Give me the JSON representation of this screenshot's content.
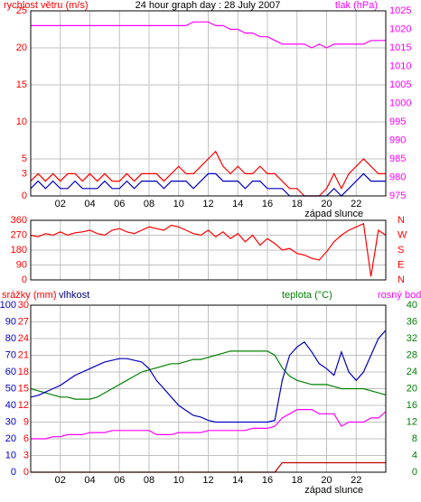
{
  "chart_data": [
    {
      "type": "line",
      "title": "24 hour graph day : 28 July 2007",
      "ylabel": "rychlost větru (m/s)",
      "y2label": "tlak (hPa)",
      "xlim": [
        0,
        24
      ],
      "xticks": [
        {
          "value": 2,
          "label": "02"
        },
        {
          "value": 4,
          "label": "04"
        },
        {
          "value": 6,
          "label": "06"
        },
        {
          "value": 8,
          "label": "08"
        },
        {
          "value": 10,
          "label": "10"
        },
        {
          "value": 12,
          "label": "12"
        },
        {
          "value": 14,
          "label": "14"
        },
        {
          "value": 16,
          "label": "16"
        },
        {
          "value": 18,
          "label": "18"
        },
        {
          "value": 20,
          "label": "20"
        },
        {
          "value": 22,
          "label": "22"
        }
      ],
      "ylim": [
        0,
        25
      ],
      "yticks": [
        0,
        3,
        5,
        10,
        15,
        20,
        25
      ],
      "ycolor": "#ff0000",
      "y2lim": [
        975,
        1025
      ],
      "y2ticks": [
        975,
        980,
        985,
        990,
        995,
        1000,
        1005,
        1010,
        1015,
        1020,
        1025
      ],
      "y2color": "#ff00ff",
      "grid": true,
      "annotations": [
        {
          "text": "západ slunce",
          "x": 20.5
        }
      ],
      "x": [
        0,
        0.5,
        1,
        1.5,
        2,
        2.5,
        3,
        3.5,
        4,
        4.5,
        5,
        5.5,
        6,
        6.5,
        7,
        7.5,
        8,
        8.5,
        9,
        9.5,
        10,
        10.5,
        11,
        11.5,
        12,
        12.5,
        13,
        13.5,
        14,
        14.5,
        15,
        15.5,
        16,
        16.5,
        17,
        17.5,
        18,
        18.5,
        19,
        19.5,
        20,
        20.5,
        21,
        21.5,
        22,
        22.5,
        23,
        23.5,
        24
      ],
      "series": [
        {
          "color": "#ff00ff",
          "axis": "y2",
          "values": [
            1021,
            1021,
            1021,
            1021,
            1021,
            1021,
            1021,
            1021,
            1021,
            1021,
            1021,
            1021,
            1021,
            1021,
            1021,
            1021,
            1021,
            1021,
            1021,
            1021,
            1021,
            1021,
            1022,
            1022,
            1022,
            1021,
            1021,
            1020,
            1020,
            1019,
            1019,
            1018,
            1018,
            1017,
            1016,
            1016,
            1016,
            1016,
            1015,
            1016,
            1015,
            1016,
            1016,
            1016,
            1016,
            1016,
            1017,
            1017,
            1017
          ]
        },
        {
          "color": "#ff0000",
          "values": [
            2,
            3,
            2,
            3,
            2,
            3,
            3,
            2,
            3,
            2,
            3,
            2,
            2,
            3,
            2,
            3,
            3,
            3,
            2,
            3,
            4,
            3,
            3,
            4,
            5,
            6,
            4,
            3,
            4,
            3,
            3,
            4,
            3,
            3,
            2,
            1,
            1,
            0,
            0,
            0,
            1,
            3,
            1,
            3,
            4,
            5,
            4,
            3,
            3
          ]
        },
        {
          "color": "#0000c0",
          "values": [
            1,
            2,
            1,
            2,
            1,
            1,
            2,
            1,
            1,
            1,
            2,
            1,
            1,
            2,
            1,
            2,
            2,
            2,
            1,
            2,
            2,
            2,
            1,
            2,
            3,
            3,
            2,
            2,
            2,
            1,
            2,
            2,
            1,
            1,
            1,
            0,
            0,
            0,
            0,
            0,
            0,
            1,
            0,
            1,
            2,
            3,
            2,
            2,
            2
          ]
        }
      ]
    },
    {
      "type": "line",
      "xlim": [
        0,
        24
      ],
      "xticks": [
        2,
        4,
        6,
        8,
        10,
        12,
        14,
        16,
        18,
        20,
        22
      ],
      "xtick_labels": false,
      "ylim": [
        0,
        360
      ],
      "yticks": [
        0,
        90,
        180,
        270,
        360
      ],
      "ycolor": "#ff0000",
      "y2lim": [
        0,
        360
      ],
      "y2ticks": [
        {
          "value": 0,
          "label": "N"
        },
        {
          "value": 90,
          "label": "E"
        },
        {
          "value": 180,
          "label": "S"
        },
        {
          "value": 270,
          "label": "W"
        },
        {
          "value": 360,
          "label": "N"
        }
      ],
      "y2color": "#ff0000",
      "grid": true,
      "x": [
        0,
        0.5,
        1,
        1.5,
        2,
        2.5,
        3,
        3.5,
        4,
        4.5,
        5,
        5.5,
        6,
        6.5,
        7,
        7.5,
        8,
        8.5,
        9,
        9.5,
        10,
        10.5,
        11,
        11.5,
        12,
        12.5,
        13,
        13.5,
        14,
        14.5,
        15,
        15.5,
        16,
        16.5,
        17,
        17.5,
        18,
        18.5,
        19,
        19.5,
        20,
        20.5,
        21,
        21.5,
        22,
        22.5,
        23,
        23.5,
        24
      ],
      "series": [
        {
          "color": "#ff0000",
          "values": [
            270,
            260,
            280,
            270,
            290,
            270,
            285,
            290,
            300,
            280,
            270,
            300,
            310,
            290,
            280,
            300,
            320,
            310,
            300,
            330,
            320,
            300,
            280,
            270,
            300,
            260,
            290,
            250,
            280,
            230,
            270,
            210,
            250,
            220,
            180,
            190,
            160,
            150,
            130,
            120,
            170,
            230,
            270,
            300,
            320,
            340,
            20,
            300,
            270
          ]
        }
      ]
    },
    {
      "type": "line",
      "ylabel": "srážky (mm)",
      "y2label": "vlhkost",
      "y3label": "teplota (°C)",
      "xlim": [
        0,
        24
      ],
      "xticks": [
        {
          "value": 2,
          "label": "02"
        },
        {
          "value": 4,
          "label": "04"
        },
        {
          "value": 6,
          "label": "06"
        },
        {
          "value": 8,
          "label": "08"
        },
        {
          "value": 10,
          "label": "10"
        },
        {
          "value": 12,
          "label": "12"
        },
        {
          "value": 14,
          "label": "14"
        },
        {
          "value": 16,
          "label": "16"
        },
        {
          "value": 18,
          "label": "18"
        },
        {
          "value": 20,
          "label": "20"
        },
        {
          "value": 22,
          "label": "22"
        }
      ],
      "ylim": [
        0,
        30
      ],
      "yticks": [
        0,
        3,
        6,
        9,
        12,
        15,
        18,
        21,
        24,
        27,
        30
      ],
      "ycolor": "#ff0000",
      "y2lim": [
        0,
        100
      ],
      "y2ticks": [
        0,
        10,
        20,
        30,
        40,
        50,
        60,
        70,
        80,
        90,
        100
      ],
      "y2color": "#0000c0",
      "y3lim": [
        0,
        40
      ],
      "y3ticks": [
        0,
        4,
        8,
        12,
        16,
        20,
        24,
        28,
        32,
        36,
        40
      ],
      "y3color": "#008000",
      "grid": true,
      "annotations": [
        {
          "text": "západ slunce",
          "x": 20.5
        }
      ],
      "x": [
        0,
        0.5,
        1,
        1.5,
        2,
        2.5,
        3,
        3.5,
        4,
        4.5,
        5,
        5.5,
        6,
        6.5,
        7,
        7.5,
        8,
        8.5,
        9,
        9.5,
        10,
        10.5,
        11,
        11.5,
        12,
        12.5,
        13,
        13.5,
        14,
        14.5,
        15,
        15.5,
        16,
        16.5,
        17,
        17.5,
        18,
        18.5,
        19,
        19.5,
        20,
        20.5,
        21,
        21.5,
        22,
        22.5,
        23,
        23.5,
        24
      ],
      "series": [
        {
          "color": "#c00000",
          "values": [
            0,
            0,
            0,
            0,
            0,
            0,
            0,
            0,
            0,
            0,
            0,
            0,
            0,
            0,
            0,
            0,
            0,
            0,
            0,
            0,
            0,
            0,
            0,
            0,
            0,
            0,
            0,
            0,
            0,
            0,
            0,
            0,
            0,
            0,
            1.7,
            1.7,
            1.7,
            1.7,
            1.7,
            1.7,
            1.7,
            1.7,
            1.7,
            1.7,
            1.7,
            1.7,
            1.7,
            1.7,
            1.7
          ]
        },
        {
          "color": "#008000",
          "axis": "y3",
          "values": [
            20,
            19.5,
            19,
            18.5,
            18,
            18,
            17.5,
            17.5,
            17.5,
            18,
            19,
            20,
            21,
            22,
            23,
            24,
            24.5,
            25,
            25.5,
            26,
            26,
            26.5,
            27,
            27,
            27.5,
            28,
            28.5,
            29,
            29,
            29,
            29,
            29,
            29,
            28,
            25,
            23,
            22,
            21.5,
            21,
            21,
            21,
            20.5,
            20,
            20,
            20,
            20,
            19.5,
            19,
            18.5
          ]
        },
        {
          "color": "#0000c0",
          "axis": "y2",
          "values": [
            45,
            46,
            48,
            50,
            52,
            55,
            58,
            60,
            62,
            64,
            66,
            67,
            68,
            68,
            67,
            66,
            62,
            55,
            50,
            45,
            40,
            37,
            34,
            33,
            31,
            30,
            30,
            30,
            30,
            30,
            30,
            30,
            30,
            31,
            55,
            70,
            75,
            78,
            72,
            65,
            62,
            58,
            72,
            60,
            55,
            60,
            70,
            80,
            85
          ]
        },
        {
          "name": "rosný bod",
          "color": "#ff00ff",
          "axis": "y3",
          "values": [
            8,
            8,
            8,
            8.5,
            8.5,
            9,
            9,
            9,
            9.5,
            9.5,
            9.5,
            10,
            10,
            10,
            10,
            10,
            10,
            9,
            9,
            9,
            9.5,
            9.5,
            9.5,
            9.5,
            10,
            10,
            10,
            10,
            10,
            10,
            10.5,
            10.5,
            10.5,
            11,
            13,
            14,
            15,
            15,
            15,
            14,
            14,
            14,
            11,
            12,
            12,
            12,
            13,
            13,
            14.5
          ]
        }
      ]
    }
  ]
}
